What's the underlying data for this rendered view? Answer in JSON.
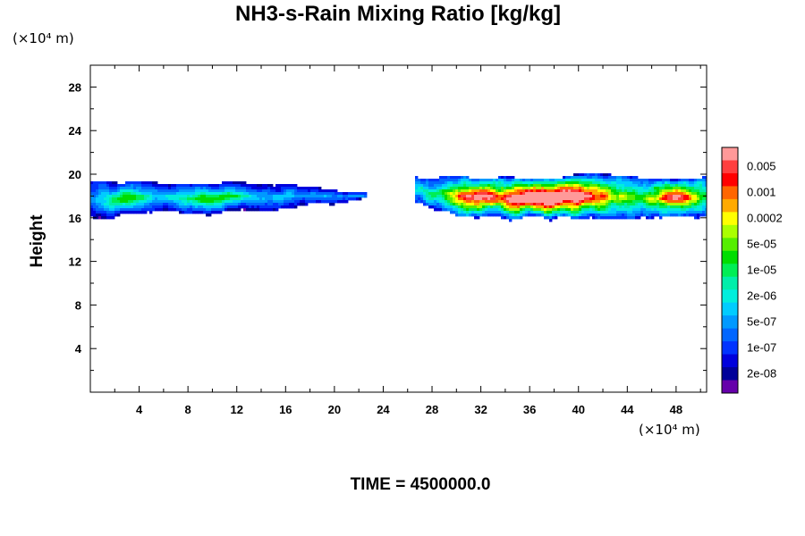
{
  "chart_data": {
    "type": "heatmap",
    "title": "NH3-s-Rain Mixing Ratio [kg/kg]",
    "xlabel": "",
    "ylabel": "Height",
    "x_unit": "(×10⁴ m)",
    "y_unit": "(×10⁴ m)",
    "xlim": [
      0,
      50.5
    ],
    "ylim": [
      0,
      30
    ],
    "x_ticks": [
      4,
      8,
      12,
      16,
      20,
      24,
      28,
      32,
      36,
      40,
      44,
      48
    ],
    "y_ticks": [
      4,
      8,
      12,
      16,
      20,
      24,
      28
    ],
    "colorbar": {
      "labels": [
        "0.005",
        "0.001",
        "0.0002",
        "5e-05",
        "1e-05",
        "2e-06",
        "5e-07",
        "1e-07",
        "2e-08"
      ],
      "colors": [
        "#ff9999",
        "#ff3f3f",
        "#ff0000",
        "#ff6600",
        "#ffaa00",
        "#ffff00",
        "#aaff00",
        "#55ee00",
        "#00dd00",
        "#00ee55",
        "#00eeaa",
        "#00eedd",
        "#00ccff",
        "#0099ff",
        "#0066ff",
        "#0033ff",
        "#0000dd",
        "#000099",
        "#6600aa"
      ]
    },
    "regions": [
      {
        "name": "left cloud band",
        "x_range": [
          0,
          22.7
        ],
        "y_range": [
          15.8,
          19.5
        ],
        "max_level": "1e-05"
      },
      {
        "name": "right cloud band",
        "x_range": [
          26.5,
          50.5
        ],
        "y_range": [
          15.2,
          20.2
        ],
        "max_level": "0.005"
      }
    ]
  },
  "footer": {
    "time_label": "TIME = 4500000.0"
  }
}
